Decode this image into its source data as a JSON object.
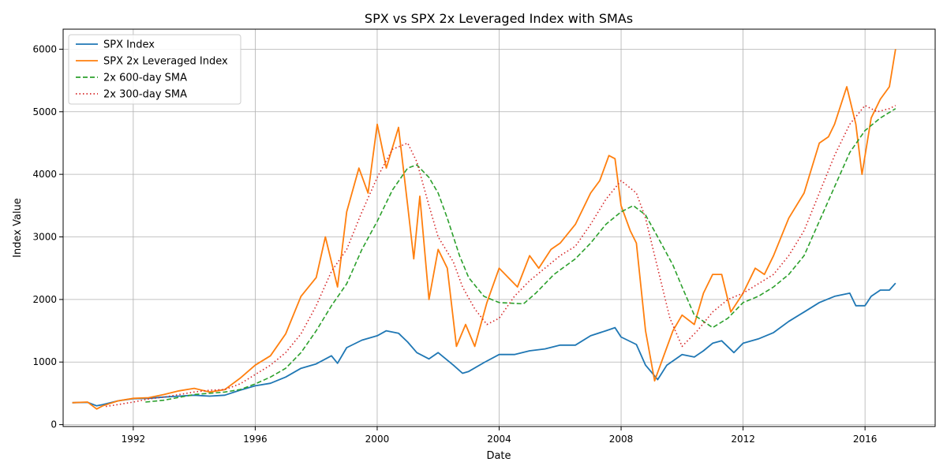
{
  "chart_data": {
    "type": "line",
    "title": "SPX vs SPX 2x Leveraged Index with SMAs",
    "xlabel": "Date",
    "ylabel": "Index Value",
    "xlim": [
      1989.7,
      2018.3
    ],
    "ylim": [
      -30,
      6320
    ],
    "x_ticks": [
      1992,
      1996,
      2000,
      2004,
      2008,
      2012,
      2016
    ],
    "y_ticks": [
      0,
      1000,
      2000,
      3000,
      4000,
      5000,
      6000
    ],
    "grid": true,
    "legend_position": "top-left",
    "series": [
      {
        "name": "SPX Index",
        "color": "#1f77b4",
        "style": "solid",
        "points": [
          [
            1990.0,
            350
          ],
          [
            1990.5,
            355
          ],
          [
            1990.8,
            300
          ],
          [
            1991.0,
            320
          ],
          [
            1991.5,
            380
          ],
          [
            1992.0,
            415
          ],
          [
            1992.5,
            420
          ],
          [
            1993.0,
            440
          ],
          [
            1993.5,
            455
          ],
          [
            1994.0,
            470
          ],
          [
            1994.5,
            455
          ],
          [
            1995.0,
            470
          ],
          [
            1995.5,
            550
          ],
          [
            1996.0,
            620
          ],
          [
            1996.5,
            660
          ],
          [
            1997.0,
            760
          ],
          [
            1997.5,
            900
          ],
          [
            1998.0,
            970
          ],
          [
            1998.5,
            1100
          ],
          [
            1998.7,
            980
          ],
          [
            1999.0,
            1230
          ],
          [
            1999.5,
            1350
          ],
          [
            2000.0,
            1420
          ],
          [
            2000.3,
            1500
          ],
          [
            2000.7,
            1460
          ],
          [
            2001.0,
            1320
          ],
          [
            2001.3,
            1150
          ],
          [
            2001.7,
            1050
          ],
          [
            2002.0,
            1150
          ],
          [
            2002.5,
            950
          ],
          [
            2002.8,
            820
          ],
          [
            2003.0,
            850
          ],
          [
            2003.5,
            990
          ],
          [
            2004.0,
            1120
          ],
          [
            2004.5,
            1120
          ],
          [
            2005.0,
            1180
          ],
          [
            2005.5,
            1210
          ],
          [
            2006.0,
            1270
          ],
          [
            2006.5,
            1270
          ],
          [
            2007.0,
            1420
          ],
          [
            2007.5,
            1500
          ],
          [
            2007.8,
            1550
          ],
          [
            2008.0,
            1400
          ],
          [
            2008.5,
            1280
          ],
          [
            2008.8,
            950
          ],
          [
            2009.2,
            720
          ],
          [
            2009.5,
            950
          ],
          [
            2010.0,
            1120
          ],
          [
            2010.4,
            1080
          ],
          [
            2010.7,
            1180
          ],
          [
            2011.0,
            1300
          ],
          [
            2011.3,
            1340
          ],
          [
            2011.7,
            1150
          ],
          [
            2012.0,
            1300
          ],
          [
            2012.5,
            1370
          ],
          [
            2013.0,
            1470
          ],
          [
            2013.5,
            1650
          ],
          [
            2014.0,
            1800
          ],
          [
            2014.5,
            1950
          ],
          [
            2015.0,
            2050
          ],
          [
            2015.5,
            2100
          ],
          [
            2015.7,
            1900
          ],
          [
            2016.0,
            1900
          ],
          [
            2016.2,
            2050
          ],
          [
            2016.5,
            2150
          ],
          [
            2016.8,
            2150
          ],
          [
            2017.0,
            2260
          ]
        ]
      },
      {
        "name": "SPX 2x Leveraged Index",
        "color": "#ff7f0e",
        "style": "solid",
        "points": [
          [
            1990.0,
            350
          ],
          [
            1990.5,
            360
          ],
          [
            1990.8,
            250
          ],
          [
            1991.0,
            300
          ],
          [
            1991.5,
            380
          ],
          [
            1992.0,
            420
          ],
          [
            1992.5,
            430
          ],
          [
            1993.0,
            480
          ],
          [
            1993.5,
            540
          ],
          [
            1994.0,
            580
          ],
          [
            1994.5,
            520
          ],
          [
            1995.0,
            560
          ],
          [
            1995.5,
            740
          ],
          [
            1996.0,
            950
          ],
          [
            1996.5,
            1100
          ],
          [
            1997.0,
            1450
          ],
          [
            1997.5,
            2050
          ],
          [
            1998.0,
            2350
          ],
          [
            1998.3,
            3000
          ],
          [
            1998.7,
            2200
          ],
          [
            1999.0,
            3400
          ],
          [
            1999.4,
            4100
          ],
          [
            1999.7,
            3700
          ],
          [
            2000.0,
            4800
          ],
          [
            2000.3,
            4100
          ],
          [
            2000.7,
            4750
          ],
          [
            2001.0,
            3500
          ],
          [
            2001.2,
            2650
          ],
          [
            2001.4,
            3650
          ],
          [
            2001.7,
            2000
          ],
          [
            2002.0,
            2800
          ],
          [
            2002.3,
            2500
          ],
          [
            2002.6,
            1250
          ],
          [
            2002.9,
            1600
          ],
          [
            2003.2,
            1250
          ],
          [
            2003.6,
            1950
          ],
          [
            2004.0,
            2500
          ],
          [
            2004.3,
            2350
          ],
          [
            2004.6,
            2200
          ],
          [
            2005.0,
            2700
          ],
          [
            2005.3,
            2500
          ],
          [
            2005.7,
            2800
          ],
          [
            2006.0,
            2900
          ],
          [
            2006.5,
            3200
          ],
          [
            2007.0,
            3700
          ],
          [
            2007.3,
            3900
          ],
          [
            2007.6,
            4300
          ],
          [
            2007.8,
            4250
          ],
          [
            2008.0,
            3500
          ],
          [
            2008.3,
            3100
          ],
          [
            2008.5,
            2900
          ],
          [
            2008.8,
            1500
          ],
          [
            2009.1,
            700
          ],
          [
            2009.4,
            1100
          ],
          [
            2009.7,
            1500
          ],
          [
            2010.0,
            1750
          ],
          [
            2010.4,
            1600
          ],
          [
            2010.7,
            2100
          ],
          [
            2011.0,
            2400
          ],
          [
            2011.3,
            2400
          ],
          [
            2011.6,
            1800
          ],
          [
            2012.0,
            2100
          ],
          [
            2012.4,
            2500
          ],
          [
            2012.7,
            2400
          ],
          [
            2013.0,
            2700
          ],
          [
            2013.5,
            3300
          ],
          [
            2014.0,
            3700
          ],
          [
            2014.5,
            4500
          ],
          [
            2014.8,
            4600
          ],
          [
            2015.0,
            4800
          ],
          [
            2015.4,
            5400
          ],
          [
            2015.7,
            4800
          ],
          [
            2015.9,
            4000
          ],
          [
            2016.2,
            4900
          ],
          [
            2016.5,
            5200
          ],
          [
            2016.8,
            5400
          ],
          [
            2017.0,
            6000
          ]
        ]
      },
      {
        "name": "2x 600-day SMA",
        "color": "#2ca02c",
        "style": "dashed",
        "points": [
          [
            1992.4,
            360
          ],
          [
            1993.0,
            390
          ],
          [
            1994.0,
            480
          ],
          [
            1995.0,
            520
          ],
          [
            1995.5,
            560
          ],
          [
            1996.0,
            650
          ],
          [
            1996.5,
            760
          ],
          [
            1997.0,
            900
          ],
          [
            1997.5,
            1150
          ],
          [
            1998.0,
            1500
          ],
          [
            1998.5,
            1900
          ],
          [
            1999.0,
            2250
          ],
          [
            1999.5,
            2800
          ],
          [
            2000.0,
            3250
          ],
          [
            2000.5,
            3750
          ],
          [
            2001.0,
            4100
          ],
          [
            2001.3,
            4150
          ],
          [
            2001.7,
            3950
          ],
          [
            2002.0,
            3700
          ],
          [
            2002.3,
            3300
          ],
          [
            2002.7,
            2700
          ],
          [
            2003.0,
            2350
          ],
          [
            2003.5,
            2050
          ],
          [
            2004.0,
            1950
          ],
          [
            2004.8,
            1930
          ],
          [
            2005.2,
            2100
          ],
          [
            2005.8,
            2400
          ],
          [
            2006.5,
            2650
          ],
          [
            2007.0,
            2900
          ],
          [
            2007.5,
            3200
          ],
          [
            2008.0,
            3400
          ],
          [
            2008.4,
            3500
          ],
          [
            2008.8,
            3350
          ],
          [
            2009.2,
            3000
          ],
          [
            2009.7,
            2550
          ],
          [
            2010.0,
            2200
          ],
          [
            2010.4,
            1750
          ],
          [
            2011.0,
            1550
          ],
          [
            2011.5,
            1700
          ],
          [
            2012.0,
            1950
          ],
          [
            2012.5,
            2050
          ],
          [
            2013.0,
            2200
          ],
          [
            2013.5,
            2400
          ],
          [
            2014.0,
            2700
          ],
          [
            2014.5,
            3250
          ],
          [
            2015.0,
            3800
          ],
          [
            2015.5,
            4350
          ],
          [
            2016.0,
            4700
          ],
          [
            2016.5,
            4900
          ],
          [
            2017.0,
            5050
          ]
        ]
      },
      {
        "name": "2x 300-day SMA",
        "color": "#d62728",
        "style": "dotted",
        "points": [
          [
            1991.1,
            290
          ],
          [
            1991.5,
            320
          ],
          [
            1992.0,
            360
          ],
          [
            1992.5,
            410
          ],
          [
            1993.0,
            440
          ],
          [
            1993.5,
            480
          ],
          [
            1994.0,
            520
          ],
          [
            1994.5,
            550
          ],
          [
            1995.0,
            560
          ],
          [
            1995.5,
            650
          ],
          [
            1996.0,
            800
          ],
          [
            1996.5,
            950
          ],
          [
            1997.0,
            1150
          ],
          [
            1997.5,
            1450
          ],
          [
            1998.0,
            1900
          ],
          [
            1998.5,
            2450
          ],
          [
            1999.0,
            2800
          ],
          [
            1999.5,
            3400
          ],
          [
            2000.0,
            3950
          ],
          [
            2000.5,
            4400
          ],
          [
            2001.0,
            4500
          ],
          [
            2001.3,
            4200
          ],
          [
            2001.7,
            3500
          ],
          [
            2002.0,
            3000
          ],
          [
            2002.5,
            2600
          ],
          [
            2002.8,
            2200
          ],
          [
            2003.2,
            1850
          ],
          [
            2003.6,
            1600
          ],
          [
            2004.0,
            1700
          ],
          [
            2004.5,
            2050
          ],
          [
            2005.0,
            2300
          ],
          [
            2005.5,
            2500
          ],
          [
            2006.0,
            2700
          ],
          [
            2006.5,
            2850
          ],
          [
            2007.0,
            3200
          ],
          [
            2007.5,
            3600
          ],
          [
            2008.0,
            3900
          ],
          [
            2008.5,
            3700
          ],
          [
            2008.8,
            3300
          ],
          [
            2009.2,
            2500
          ],
          [
            2009.6,
            1700
          ],
          [
            2010.0,
            1250
          ],
          [
            2010.5,
            1500
          ],
          [
            2011.0,
            1800
          ],
          [
            2011.5,
            2000
          ],
          [
            2012.0,
            2100
          ],
          [
            2012.5,
            2250
          ],
          [
            2013.0,
            2400
          ],
          [
            2013.5,
            2700
          ],
          [
            2014.0,
            3100
          ],
          [
            2014.5,
            3700
          ],
          [
            2015.0,
            4300
          ],
          [
            2015.5,
            4800
          ],
          [
            2016.0,
            5100
          ],
          [
            2016.4,
            5000
          ],
          [
            2016.8,
            5050
          ],
          [
            2017.0,
            5100
          ]
        ]
      }
    ]
  }
}
